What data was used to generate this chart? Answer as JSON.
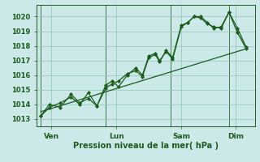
{
  "bg_color": "#cce8e8",
  "grid_color": "#99ccbb",
  "line_color": "#1a5c1a",
  "marker_color": "#1a5c1a",
  "ylabel_ticks": [
    1013,
    1014,
    1015,
    1016,
    1017,
    1018,
    1019,
    1020
  ],
  "ylim": [
    1012.5,
    1020.8
  ],
  "xlabel": "Pression niveau de la mer( hPa )",
  "day_labels": [
    "Ven",
    "Lun",
    "Sam",
    "Dim"
  ],
  "day_positions": [
    0.5,
    3.5,
    6.5,
    9.0
  ],
  "day_vlines": [
    0.0,
    3.0,
    6.0,
    8.7
  ],
  "series1_x": [
    0.0,
    0.4,
    0.9,
    1.4,
    1.8,
    2.2,
    2.6,
    3.0,
    3.3,
    3.6,
    4.0,
    4.4,
    4.7,
    5.0,
    5.3,
    5.5,
    5.8,
    6.1,
    6.5,
    6.8,
    7.1,
    7.4,
    7.7,
    8.0,
    8.35,
    8.7,
    9.1,
    9.5
  ],
  "series1_y": [
    1013.2,
    1014.0,
    1013.8,
    1014.7,
    1014.1,
    1014.4,
    1013.9,
    1015.3,
    1015.6,
    1015.2,
    1016.0,
    1016.5,
    1016.0,
    1017.3,
    1017.5,
    1017.0,
    1017.6,
    1017.1,
    1019.3,
    1019.6,
    1020.0,
    1019.9,
    1019.5,
    1019.3,
    1019.2,
    1020.3,
    1018.9,
    1017.8
  ],
  "series2_x": [
    0.0,
    0.4,
    0.9,
    1.4,
    1.8,
    2.2,
    2.6,
    3.0,
    3.3,
    3.6,
    4.0,
    4.4,
    4.7,
    5.0,
    5.3,
    5.5,
    5.8,
    6.1,
    6.5,
    6.8,
    7.1,
    7.4,
    7.7,
    8.0,
    8.35,
    8.7,
    9.1,
    9.5
  ],
  "series2_y": [
    1013.2,
    1013.8,
    1014.1,
    1014.5,
    1014.0,
    1014.8,
    1013.9,
    1015.1,
    1015.4,
    1015.6,
    1016.1,
    1016.3,
    1015.9,
    1017.2,
    1017.4,
    1016.9,
    1017.7,
    1017.2,
    1019.4,
    1019.6,
    1020.0,
    1020.0,
    1019.6,
    1019.2,
    1019.3,
    1020.3,
    1019.2,
    1017.9
  ],
  "trend_x": [
    0.0,
    9.5
  ],
  "trend_y": [
    1013.5,
    1017.8
  ],
  "xlim": [
    -0.2,
    9.9
  ]
}
